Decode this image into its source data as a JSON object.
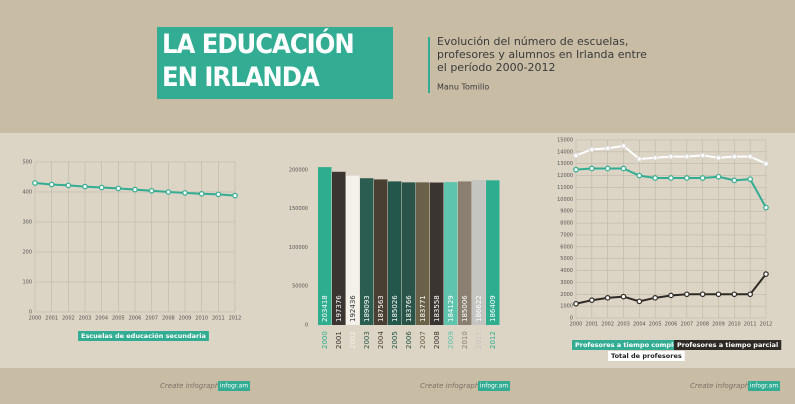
{
  "header": {
    "title": "LA EDUCACIÓN EN IRLANDA",
    "subtitle": "Evolución del número de escuelas, profesores y alumnos en Irlanda entre el período 2000-2012",
    "author": "Manu Tomillo"
  },
  "chart_data": [
    {
      "type": "line",
      "categories": [
        "2000",
        "2001",
        "2002",
        "2003",
        "2004",
        "2005",
        "2006",
        "2007",
        "2008",
        "2009",
        "2010",
        "2011",
        "2012"
      ],
      "series": [
        {
          "name": "Escuelas de educación secundaria",
          "color": "#32ad93",
          "values": [
            430,
            425,
            422,
            418,
            415,
            412,
            408,
            404,
            400,
            397,
            394,
            392,
            388
          ]
        }
      ],
      "ylim": [
        0,
        500
      ],
      "yticks": [
        0,
        100,
        200,
        300,
        400,
        500
      ],
      "grid": true
    },
    {
      "type": "bar",
      "categories": [
        "2000",
        "2001",
        "2002",
        "2003",
        "2004",
        "2005",
        "2006",
        "2007",
        "2008",
        "2009",
        "2010",
        "2011",
        "2012"
      ],
      "values": [
        203418,
        197376,
        192436,
        189093,
        187563,
        185026,
        183766,
        183771,
        183558,
        184129,
        185006,
        186622,
        186409
      ],
      "colors": [
        "#2fae8f",
        "#3a3530",
        "#f4f1ea",
        "#2b5e50",
        "#4a3f33",
        "#23574b",
        "#2a5448",
        "#6b6048",
        "#3a3530",
        "#5fc4ad",
        "#8a7f70",
        "#c4c4c0",
        "#2fae8f"
      ],
      "ylim": [
        0,
        210000
      ],
      "yticks": [
        0,
        50000,
        100000,
        150000,
        200000
      ],
      "grid": false
    },
    {
      "type": "line",
      "categories": [
        "2000",
        "2001",
        "2002",
        "2003",
        "2004",
        "2005",
        "2006",
        "2007",
        "2008",
        "2009",
        "2010",
        "2011",
        "2012"
      ],
      "series": [
        {
          "name": "Profesores a tiempo completo",
          "color": "#32ad93",
          "values": [
            12500,
            12600,
            12600,
            12600,
            12000,
            11800,
            11800,
            11800,
            11800,
            11900,
            11600,
            11700,
            9300
          ]
        },
        {
          "name": "Profesores a tiempo parcial",
          "color": "#2e2a26",
          "values": [
            1200,
            1500,
            1700,
            1800,
            1400,
            1700,
            1900,
            2000,
            2000,
            2000,
            2000,
            2000,
            3700
          ]
        },
        {
          "name": "Total de profesores",
          "color": "#ffffff",
          "values": [
            13700,
            14200,
            14300,
            14500,
            13400,
            13500,
            13600,
            13600,
            13700,
            13500,
            13600,
            13600,
            13000
          ]
        }
      ],
      "ylim": [
        0,
        15000
      ],
      "yticks": [
        0,
        1000,
        2000,
        3000,
        4000,
        5000,
        6000,
        7000,
        8000,
        9000,
        10000,
        11000,
        12000,
        13000,
        14000,
        15000
      ],
      "grid": true
    }
  ],
  "footer": {
    "credit": "Create infographics",
    "brand": "infogr.am"
  }
}
